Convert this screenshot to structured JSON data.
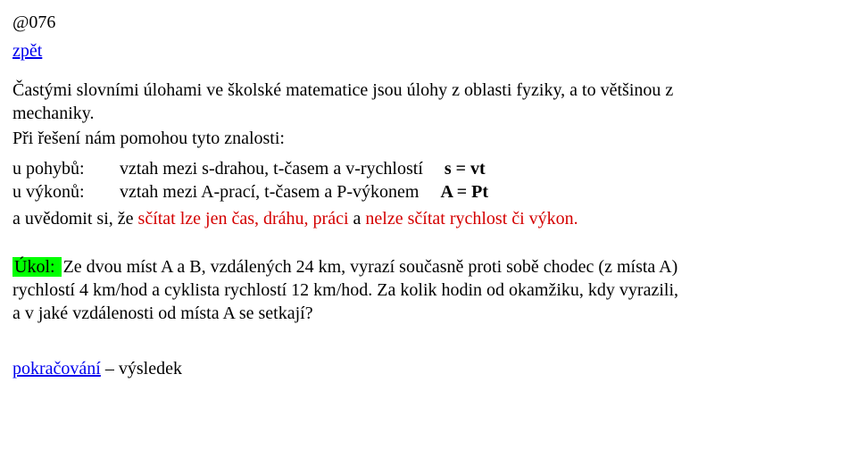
{
  "code": "@076",
  "back_link": "zpět",
  "intro_line1": "Častými slovními úlohami ve školské matematice jsou úlohy z oblasti fyziky, a to většinou z",
  "intro_line2": "mechaniky.",
  "lead": "Při řešení nám pomohou tyto znalosti:",
  "motion": {
    "label": "u pohybů:",
    "desc": "  vztah mezi s-drahou, t-časem a v-rychlostí",
    "eq": "s = vt"
  },
  "power": {
    "label": "u výkonů:",
    "desc": "  vztah mezi A-prací, t-časem a P-výkonem",
    "eq": "A = Pt"
  },
  "aware_lead": "a uvědomit si,  že ",
  "aware_red1": "sčítat lze jen čas, dráhu, práci",
  "aware_mid": " a ",
  "aware_red2": "nelze sčítat rychlost či výkon.",
  "task_label": "Úkol: ",
  "task_l1": " Ze dvou míst A a B, vzdálených 24 km, vyrazí současně proti sobě chodec (z místa A)",
  "task_l2": "rychlostí 4 km/hod a cyklista rychlostí 12 km/hod. Za kolik hodin od okamžiku, kdy vyrazili,",
  "task_l3": "a v jaké vzdálenosti od místa A se setkají?",
  "cont_link": "pokračování",
  "cont_tail": " – výsledek",
  "colors": {
    "link": "#0000ee",
    "red": "#d40000",
    "highlight": "#00ff00",
    "text": "#000000",
    "bg": "#ffffff"
  }
}
